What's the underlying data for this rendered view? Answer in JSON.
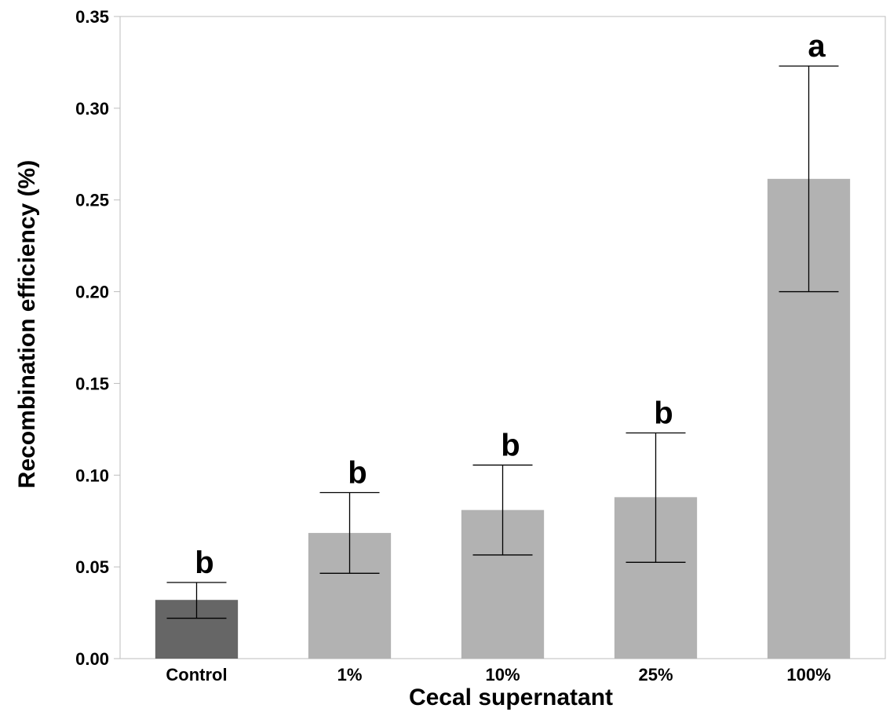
{
  "chart_data": {
    "type": "bar",
    "title": "",
    "xlabel": "Cecal supernatant",
    "ylabel": "Recombination efficiency (%)",
    "ylim": [
      0,
      0.35
    ],
    "yticks": [
      "0.00",
      "0.05",
      "0.10",
      "0.15",
      "0.20",
      "0.25",
      "0.30",
      "0.35"
    ],
    "grid": false,
    "categories": [
      "Control",
      "1%",
      "10%",
      "25%",
      "100%"
    ],
    "values": [
      0.032,
      0.0685,
      0.081,
      0.088,
      0.2615
    ],
    "error_low": [
      0.022,
      0.0465,
      0.0565,
      0.0525,
      0.2
    ],
    "error_high": [
      0.0415,
      0.0905,
      0.1055,
      0.123,
      0.323
    ],
    "significance": [
      "b",
      "b",
      "b",
      "b",
      "a"
    ],
    "colors": [
      "#666666",
      "#b2b2b2",
      "#b2b2b2",
      "#b2b2b2",
      "#b2b2b2"
    ]
  }
}
